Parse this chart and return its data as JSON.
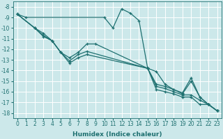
{
  "xlabel": "Humidex (Indice chaleur)",
  "background_color": "#cce8ea",
  "grid_color": "#ffffff",
  "line_color": "#1e7070",
  "xlim": [
    -0.5,
    23.5
  ],
  "ylim": [
    -18.5,
    -7.5
  ],
  "xticks": [
    0,
    1,
    2,
    3,
    4,
    5,
    6,
    7,
    8,
    9,
    10,
    11,
    12,
    13,
    14,
    15,
    16,
    17,
    18,
    19,
    20,
    21,
    22,
    23
  ],
  "yticks": [
    -8,
    -9,
    -10,
    -11,
    -12,
    -13,
    -14,
    -15,
    -16,
    -17,
    -18
  ],
  "lines": [
    {
      "x": [
        0,
        1,
        10,
        11,
        12,
        13,
        14,
        15,
        16,
        17,
        18,
        19,
        20,
        21,
        22,
        23
      ],
      "y": [
        -8.7,
        -9.0,
        -9.0,
        -10.0,
        -8.2,
        -8.6,
        -9.3,
        -13.8,
        -14.1,
        -15.3,
        -15.8,
        -16.1,
        -14.7,
        -16.5,
        -17.2,
        -17.8
      ]
    },
    {
      "x": [
        0,
        2,
        3,
        4,
        5,
        6,
        7,
        8,
        9,
        15,
        16,
        17,
        18,
        19,
        20,
        21,
        22,
        23
      ],
      "y": [
        -8.7,
        -10.0,
        -10.5,
        -11.2,
        -12.3,
        -12.8,
        -12.3,
        -11.5,
        -11.5,
        -13.8,
        -15.3,
        -15.5,
        -15.8,
        -16.2,
        -15.0,
        -16.5,
        -17.2,
        -17.8
      ]
    },
    {
      "x": [
        0,
        2,
        3,
        4,
        5,
        6,
        7,
        8,
        15,
        16,
        17,
        18,
        19,
        20,
        21,
        22,
        23
      ],
      "y": [
        -8.7,
        -10.0,
        -10.7,
        -11.2,
        -12.3,
        -13.1,
        -12.5,
        -12.2,
        -13.8,
        -15.5,
        -15.7,
        -16.0,
        -16.3,
        -16.3,
        -16.8,
        -17.2,
        -17.8
      ]
    },
    {
      "x": [
        0,
        2,
        3,
        4,
        5,
        6,
        7,
        8,
        15,
        16,
        17,
        18,
        19,
        20,
        21,
        22,
        23
      ],
      "y": [
        -8.7,
        -10.0,
        -10.8,
        -11.2,
        -12.3,
        -13.3,
        -12.8,
        -12.5,
        -13.8,
        -15.8,
        -16.0,
        -16.2,
        -16.5,
        -16.5,
        -17.2,
        -17.2,
        -17.8
      ]
    }
  ],
  "tick_fontsize": 5.5,
  "label_fontsize": 6.5
}
